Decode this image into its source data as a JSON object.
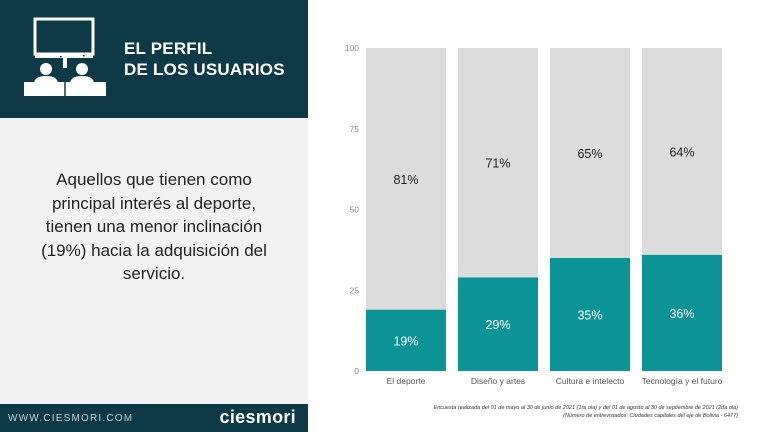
{
  "header": {
    "title_line1": "EL PERFIL",
    "title_line2": "DE LOS USUARIOS",
    "icon": "users-tv-icon"
  },
  "main": {
    "body_text": "Aquellos que tienen como principal interés al deporte, tienen una menor inclinación (19%) hacia la adquisición del servicio."
  },
  "footer": {
    "url": "WWW.CIESMORI.COM",
    "brand": "ciesmori"
  },
  "note": {
    "line1": "Encuesta realizada del  01 de mayo al 30 de junio de 2021 (1ra ola) y del 01 de agosto al 30 de  septiembre de 2021 (2da ola)",
    "line2": "(Número de entrevistados: Ciudades capitales del eje de Bolivia - 6477)"
  },
  "colors": {
    "header": "#0d3a46",
    "accent": "#0b9396",
    "bar_rest": "#dcdcdc",
    "panel": "#f2f2f2"
  },
  "chart_data": {
    "type": "bar",
    "stacked": true,
    "percent": true,
    "categories": [
      "El deporte",
      "Diseño y artes",
      "Cultura e intelecto",
      "Tecnología y el futuro"
    ],
    "series": [
      {
        "values": [
          19,
          29,
          35,
          36
        ],
        "labels": [
          "19%",
          "29%",
          "35%",
          "36%"
        ],
        "color": "#0b9396"
      },
      {
        "values": [
          81,
          71,
          65,
          64
        ],
        "labels": [
          "81%",
          "71%",
          "65%",
          "64%"
        ],
        "color": "#dcdcdc"
      }
    ],
    "ylim": [
      0,
      100
    ],
    "yticks": [
      "0",
      "25",
      "50",
      "75",
      "100"
    ],
    "grid": false,
    "legend": "none"
  }
}
